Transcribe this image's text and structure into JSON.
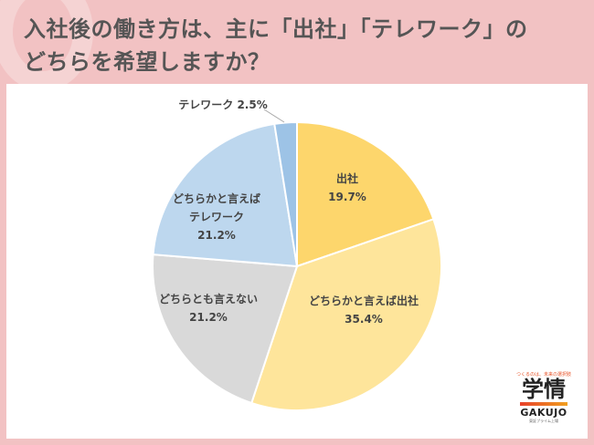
{
  "header": {
    "title_line1": "入社後の働き方は、主に「出社」「テレワーク」の",
    "title_line2": "どちらを希望しますか？"
  },
  "chart_data": {
    "type": "pie",
    "title": "入社後の働き方は、主に「出社」「テレワーク」のどちらを希望しますか？",
    "categories": [
      "出社",
      "どちらかと言えば出社",
      "どちらとも言えない",
      "どちらかと言えばテレワーク",
      "テレワーク"
    ],
    "values": [
      19.7,
      35.4,
      21.2,
      21.2,
      2.5
    ],
    "unit": "%",
    "colors": [
      "#fdd66c",
      "#fee59b",
      "#d9d9d9",
      "#bdd7ee",
      "#9dc3e6"
    ],
    "start_angle": "12 o'clock, clockwise",
    "legend": "none (data labels on slices)"
  },
  "labels": [
    {
      "name": "出社",
      "value": "19.7%"
    },
    {
      "name": "どちらかと言えば出社",
      "value": "35.4%"
    },
    {
      "name": "どちらとも言えない",
      "value": "21.2%"
    },
    {
      "name_line1": "どちらかと言えば",
      "name_line2": "テレワーク",
      "value": "21.2%"
    },
    {
      "text": "テレワーク 2.5%"
    }
  ],
  "logo": {
    "tagline": "つくるのは、未来の選択肢",
    "kanji": "学情",
    "en": "GAKUJO",
    "sub": "東証プライム上場"
  }
}
